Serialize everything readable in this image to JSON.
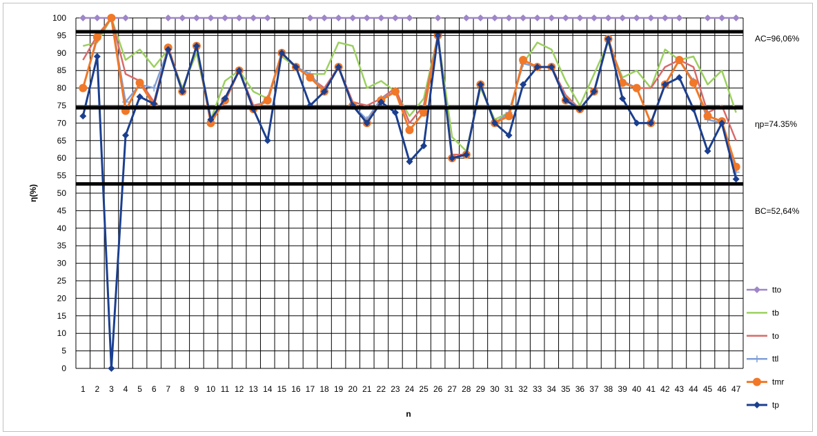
{
  "chart_data": {
    "type": "line",
    "title": "",
    "xlabel": "n",
    "ylabel": "η(%)",
    "ylim": [
      0,
      100
    ],
    "y_ticks": [
      0,
      5,
      10,
      15,
      20,
      25,
      30,
      35,
      40,
      45,
      50,
      55,
      60,
      65,
      70,
      75,
      80,
      85,
      90,
      95,
      100
    ],
    "categories": [
      "1",
      "2",
      "3",
      "4",
      "5",
      "6",
      "7",
      "8",
      "9",
      "10",
      "11",
      "12",
      "13",
      "14",
      "15",
      "16",
      "17",
      "18",
      "19",
      "20",
      "21",
      "22",
      "23",
      "24",
      "25",
      "26",
      "27",
      "28",
      "29",
      "30",
      "31",
      "32",
      "33",
      "34",
      "35",
      "36",
      "37",
      "38",
      "39",
      "40",
      "41",
      "42",
      "43",
      "44",
      "45",
      "46",
      "47"
    ],
    "grid": "vertical and horizontal",
    "legend_position": "right",
    "reference_lines": [
      {
        "value": 96.06,
        "label": "AC=96,06%"
      },
      {
        "value": 74.35,
        "label": "ηp=74.35%"
      },
      {
        "value": 52.64,
        "label": "BC=52,64%"
      }
    ],
    "series": [
      {
        "name": "tto",
        "color": "#9e86c8",
        "marker": "diamond",
        "values": [
          100,
          100,
          100,
          100,
          null,
          null,
          100,
          100,
          100,
          100,
          100,
          100,
          100,
          100,
          null,
          null,
          100,
          100,
          100,
          100,
          100,
          100,
          100,
          100,
          null,
          100,
          null,
          100,
          100,
          100,
          100,
          100,
          100,
          100,
          100,
          100,
          100,
          100,
          100,
          100,
          100,
          100,
          100,
          null,
          100,
          100,
          100
        ]
      },
      {
        "name": "tb",
        "color": "#9bd05f",
        "marker": "none",
        "values": [
          92,
          93,
          100,
          88,
          91,
          86,
          91,
          80,
          90,
          71,
          82,
          85,
          79,
          77,
          89,
          86,
          84,
          84,
          93,
          92,
          80,
          82,
          79,
          72,
          77,
          95,
          66,
          62,
          80,
          71,
          73,
          87,
          93,
          91,
          82,
          75,
          84,
          93,
          83,
          85,
          80,
          91,
          88,
          89,
          81,
          85,
          73
        ]
      },
      {
        "name": "to",
        "color": "#d96a6a",
        "marker": "none",
        "values": [
          88,
          95,
          100,
          84,
          82,
          76,
          92,
          79,
          92,
          71,
          76,
          85,
          75,
          76,
          90,
          86,
          83,
          80,
          86,
          76,
          75,
          77,
          80,
          70,
          75,
          95,
          61,
          61,
          81,
          70,
          72,
          88,
          86,
          86,
          78,
          74,
          79,
          94,
          82,
          80,
          80,
          86,
          88,
          86,
          73,
          75,
          65
        ]
      },
      {
        "name": "ttl",
        "color": "#7f9fd6",
        "marker": "plus",
        "values": [
          80,
          94,
          100,
          76,
          81,
          80,
          91,
          79,
          92,
          70,
          77,
          85,
          74,
          77,
          90,
          86,
          84,
          79,
          86,
          75,
          71,
          77,
          79,
          68,
          73,
          95,
          60,
          61,
          81,
          70,
          73,
          87,
          86,
          86,
          77,
          74,
          79,
          94,
          82,
          80,
          70,
          81,
          88,
          82,
          71,
          70,
          56
        ]
      },
      {
        "name": "tmr",
        "color": "#f07828",
        "marker": "circle",
        "values": [
          80,
          94.5,
          100,
          73.5,
          81.5,
          75,
          91.5,
          79,
          92,
          70,
          76.5,
          85,
          74,
          76.5,
          90,
          86,
          83,
          79,
          86,
          75,
          70,
          76.5,
          79,
          68,
          73,
          95,
          60,
          61,
          81,
          70,
          72,
          88,
          86,
          86,
          76.5,
          74,
          79,
          94,
          81.5,
          80,
          70,
          81,
          88,
          81.5,
          72,
          70.5,
          57.5
        ]
      },
      {
        "name": "tp",
        "color": "#1b3f8f",
        "marker": "diamond",
        "values": [
          72,
          89,
          0,
          66.5,
          77.5,
          75.5,
          91,
          79,
          92,
          71,
          77,
          85,
          74,
          65,
          90,
          86,
          75,
          79,
          86,
          75,
          70,
          76,
          73,
          59,
          63.5,
          95,
          60,
          61,
          81,
          70,
          66.5,
          81,
          86,
          86,
          76.5,
          74,
          79,
          94,
          77,
          70,
          70,
          81,
          83,
          74,
          62,
          70,
          54
        ]
      }
    ]
  }
}
